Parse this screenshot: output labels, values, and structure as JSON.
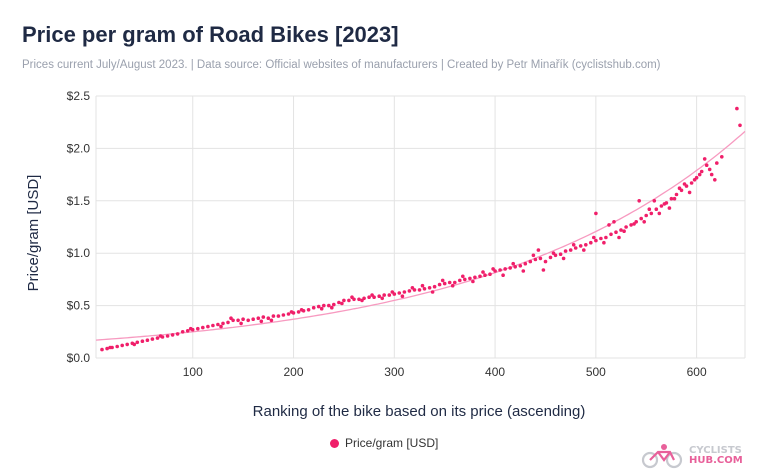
{
  "header": {
    "title": "Price per gram of Road Bikes [2023]",
    "subtitle": "Prices current July/August 2023. | Data source: Official websites of manufacturers | Created by Petr Minařík (cyclistshub.com)"
  },
  "logo": {
    "line1": "CYCLISTS",
    "line2": "HUB.COM"
  },
  "colors": {
    "accent": "#f01f6a",
    "trend": "#f79ac0",
    "grid": "#e3e3e3",
    "text": "#1f2a44"
  },
  "chart_data": {
    "type": "scatter",
    "title": "Price per gram of Road Bikes [2023]",
    "xlabel": "Ranking of the bike based on its price (ascending)",
    "ylabel": "Price/gram [USD]",
    "xlim": [
      4,
      648
    ],
    "ylim": [
      0,
      2.5
    ],
    "x_ticks": [
      100,
      200,
      300,
      400,
      500,
      600
    ],
    "x_tick_labels": [
      "100",
      "200",
      "300",
      "400",
      "500",
      "600"
    ],
    "y_ticks": [
      0,
      0.5,
      1.0,
      1.5,
      2.0,
      2.5
    ],
    "y_tick_labels": [
      "$0.0",
      "$0.5",
      "$1.0",
      "$1.5",
      "$2.0",
      "$2.5"
    ],
    "grid": true,
    "legend_position": "bottom-center",
    "trendline": true,
    "series": [
      {
        "name": "Price/gram [USD]",
        "points": [
          [
            10,
            0.08
          ],
          [
            15,
            0.09
          ],
          [
            20,
            0.1
          ],
          [
            25,
            0.11
          ],
          [
            30,
            0.12
          ],
          [
            35,
            0.13
          ],
          [
            40,
            0.14
          ],
          [
            45,
            0.15
          ],
          [
            50,
            0.16
          ],
          [
            55,
            0.17
          ],
          [
            60,
            0.18
          ],
          [
            65,
            0.19
          ],
          [
            70,
            0.2
          ],
          [
            75,
            0.21
          ],
          [
            80,
            0.22
          ],
          [
            85,
            0.23
          ],
          [
            90,
            0.25
          ],
          [
            95,
            0.26
          ],
          [
            100,
            0.27
          ],
          [
            105,
            0.28
          ],
          [
            110,
            0.29
          ],
          [
            115,
            0.3
          ],
          [
            120,
            0.31
          ],
          [
            125,
            0.32
          ],
          [
            130,
            0.33
          ],
          [
            135,
            0.34
          ],
          [
            140,
            0.36
          ],
          [
            145,
            0.36
          ],
          [
            150,
            0.37
          ],
          [
            155,
            0.36
          ],
          [
            160,
            0.37
          ],
          [
            165,
            0.38
          ],
          [
            170,
            0.39
          ],
          [
            175,
            0.38
          ],
          [
            180,
            0.4
          ],
          [
            185,
            0.4
          ],
          [
            190,
            0.41
          ],
          [
            195,
            0.42
          ],
          [
            200,
            0.43
          ],
          [
            205,
            0.44
          ],
          [
            210,
            0.45
          ],
          [
            215,
            0.46
          ],
          [
            220,
            0.48
          ],
          [
            225,
            0.49
          ],
          [
            230,
            0.5
          ],
          [
            235,
            0.5
          ],
          [
            240,
            0.51
          ],
          [
            245,
            0.53
          ],
          [
            250,
            0.55
          ],
          [
            255,
            0.55
          ],
          [
            260,
            0.56
          ],
          [
            265,
            0.56
          ],
          [
            270,
            0.57
          ],
          [
            275,
            0.58
          ],
          [
            280,
            0.58
          ],
          [
            285,
            0.59
          ],
          [
            290,
            0.6
          ],
          [
            295,
            0.6
          ],
          [
            300,
            0.61
          ],
          [
            305,
            0.62
          ],
          [
            310,
            0.63
          ],
          [
            315,
            0.64
          ],
          [
            320,
            0.65
          ],
          [
            325,
            0.65
          ],
          [
            330,
            0.66
          ],
          [
            335,
            0.67
          ],
          [
            340,
            0.68
          ],
          [
            345,
            0.7
          ],
          [
            350,
            0.71
          ],
          [
            355,
            0.72
          ],
          [
            360,
            0.72
          ],
          [
            365,
            0.74
          ],
          [
            370,
            0.75
          ],
          [
            375,
            0.76
          ],
          [
            380,
            0.77
          ],
          [
            385,
            0.78
          ],
          [
            390,
            0.79
          ],
          [
            395,
            0.8
          ],
          [
            400,
            0.83
          ],
          [
            405,
            0.84
          ],
          [
            410,
            0.85
          ],
          [
            415,
            0.86
          ],
          [
            420,
            0.87
          ],
          [
            425,
            0.88
          ],
          [
            430,
            0.9
          ],
          [
            435,
            0.92
          ],
          [
            440,
            0.94
          ],
          [
            445,
            0.95
          ],
          [
            450,
            0.92
          ],
          [
            455,
            0.96
          ],
          [
            460,
            0.98
          ],
          [
            465,
            0.99
          ],
          [
            470,
            1.02
          ],
          [
            475,
            1.03
          ],
          [
            480,
            1.05
          ],
          [
            485,
            1.07
          ],
          [
            490,
            1.08
          ],
          [
            495,
            1.1
          ],
          [
            500,
            1.12
          ],
          [
            505,
            1.14
          ],
          [
            510,
            1.15
          ],
          [
            515,
            1.18
          ],
          [
            520,
            1.2
          ],
          [
            525,
            1.22
          ],
          [
            530,
            1.25
          ],
          [
            535,
            1.27
          ],
          [
            540,
            1.3
          ],
          [
            545,
            1.33
          ],
          [
            550,
            1.36
          ],
          [
            555,
            1.38
          ],
          [
            560,
            1.42
          ],
          [
            565,
            1.45
          ],
          [
            570,
            1.48
          ],
          [
            575,
            1.52
          ],
          [
            580,
            1.56
          ],
          [
            585,
            1.6
          ],
          [
            590,
            1.64
          ],
          [
            595,
            1.67
          ],
          [
            600,
            1.72
          ],
          [
            605,
            1.78
          ],
          [
            610,
            1.84
          ],
          [
            615,
            1.75
          ],
          [
            620,
            1.86
          ],
          [
            625,
            1.92
          ],
          [
            18,
            0.1
          ],
          [
            42,
            0.13
          ],
          [
            68,
            0.21
          ],
          [
            98,
            0.28
          ],
          [
            128,
            0.3
          ],
          [
            138,
            0.38
          ],
          [
            148,
            0.33
          ],
          [
            168,
            0.35
          ],
          [
            178,
            0.36
          ],
          [
            198,
            0.44
          ],
          [
            208,
            0.46
          ],
          [
            228,
            0.47
          ],
          [
            238,
            0.48
          ],
          [
            248,
            0.52
          ],
          [
            258,
            0.58
          ],
          [
            268,
            0.55
          ],
          [
            278,
            0.6
          ],
          [
            288,
            0.57
          ],
          [
            298,
            0.63
          ],
          [
            308,
            0.59
          ],
          [
            318,
            0.67
          ],
          [
            328,
            0.69
          ],
          [
            338,
            0.63
          ],
          [
            348,
            0.74
          ],
          [
            358,
            0.69
          ],
          [
            368,
            0.78
          ],
          [
            378,
            0.73
          ],
          [
            388,
            0.82
          ],
          [
            398,
            0.85
          ],
          [
            408,
            0.79
          ],
          [
            418,
            0.9
          ],
          [
            428,
            0.83
          ],
          [
            438,
            0.98
          ],
          [
            443,
            1.03
          ],
          [
            448,
            0.84
          ],
          [
            458,
            1.0
          ],
          [
            468,
            0.95
          ],
          [
            478,
            1.08
          ],
          [
            488,
            1.03
          ],
          [
            498,
            1.15
          ],
          [
            500,
            1.38
          ],
          [
            508,
            1.1
          ],
          [
            513,
            1.27
          ],
          [
            518,
            1.3
          ],
          [
            523,
            1.15
          ],
          [
            528,
            1.21
          ],
          [
            538,
            1.28
          ],
          [
            543,
            1.5
          ],
          [
            548,
            1.3
          ],
          [
            553,
            1.42
          ],
          [
            558,
            1.5
          ],
          [
            563,
            1.38
          ],
          [
            568,
            1.47
          ],
          [
            573,
            1.43
          ],
          [
            578,
            1.52
          ],
          [
            583,
            1.62
          ],
          [
            588,
            1.66
          ],
          [
            593,
            1.58
          ],
          [
            598,
            1.7
          ],
          [
            603,
            1.75
          ],
          [
            608,
            1.9
          ],
          [
            613,
            1.8
          ],
          [
            618,
            1.7
          ],
          [
            640,
            2.38
          ],
          [
            643,
            2.22
          ]
        ]
      }
    ]
  }
}
